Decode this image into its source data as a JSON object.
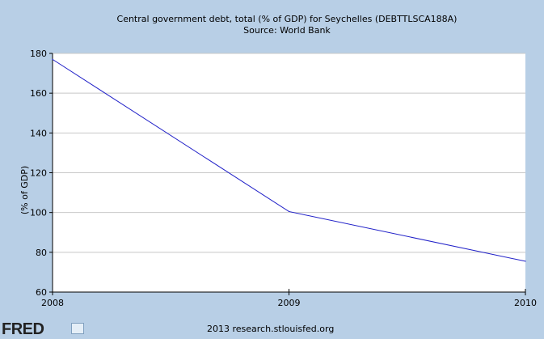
{
  "header": {
    "title": "Central government debt, total (% of GDP) for Seychelles (DEBTTLSCA188A)",
    "subtitle": "Source: World Bank"
  },
  "footer": {
    "logo_text": "FRED",
    "credit": "2013 research.stlouisfed.org"
  },
  "colors": {
    "background": "#b8cfe6",
    "plot_background": "#ffffff",
    "line": "#2020c8",
    "grid": "#c8c8c8"
  },
  "chart_data": {
    "type": "line",
    "title": "Central government debt, total (% of GDP) for Seychelles (DEBTTLSCA188A)",
    "subtitle": "Source: World Bank",
    "xlabel": "",
    "ylabel": "(% of GDP)",
    "x": [
      2008,
      2009,
      2010
    ],
    "series": [
      {
        "values": [
          177,
          100.5,
          75.5
        ]
      }
    ],
    "xlim": [
      2008,
      2010
    ],
    "ylim": [
      60,
      180
    ],
    "yticks": [
      60,
      80,
      100,
      120,
      140,
      160,
      180
    ],
    "xticks": [
      2008,
      2009,
      2010
    ],
    "grid": true,
    "legend": "none"
  }
}
